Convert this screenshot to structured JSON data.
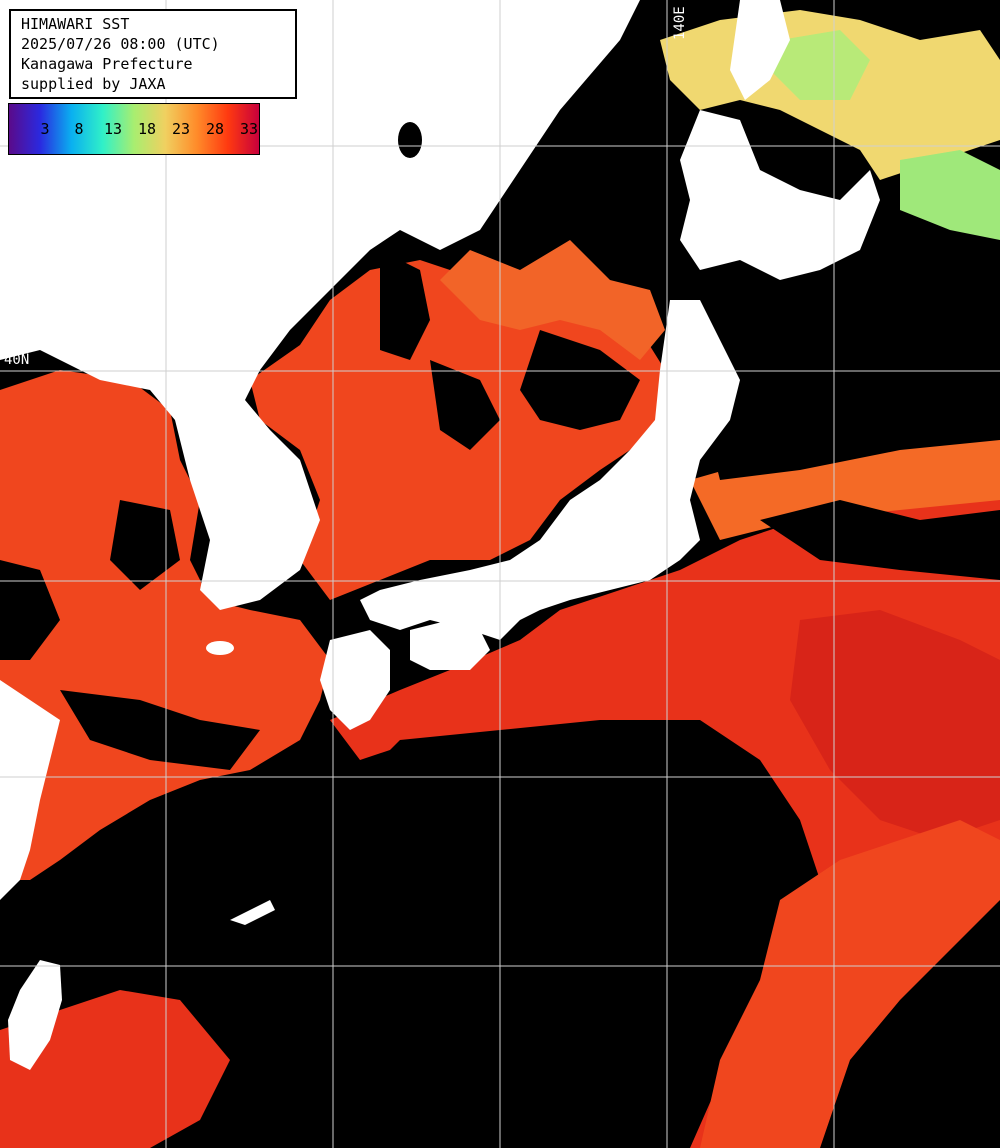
{
  "header": {
    "title": "HIMAWARI SST",
    "datetime": "2025/07/26 08:00 (UTC)",
    "agency": "Kanagawa Prefecture",
    "credit": "supplied by JAXA"
  },
  "legend": {
    "ticks": [
      "3",
      "8",
      "13",
      "18",
      "23",
      "28",
      "33"
    ],
    "stops": [
      "#5a0a8a",
      "#2a2ae0",
      "#0ab0f0",
      "#30f0c8",
      "#a8ee70",
      "#f0d060",
      "#ff8c2a",
      "#ff3a10",
      "#c8003c"
    ]
  },
  "grid": {
    "lat_labels": [
      "40N"
    ],
    "lon_labels": [
      "140E"
    ]
  },
  "colors": {
    "land": "#ffffff",
    "nodata": "#000000",
    "gridline": "#cfcfcf",
    "sst_warm": "#f0461e",
    "sst_hot": "#d81c1c",
    "sst_mid": "#f8821e",
    "sst_cool": "#f0d870",
    "sst_cold": "#9fe87a"
  }
}
